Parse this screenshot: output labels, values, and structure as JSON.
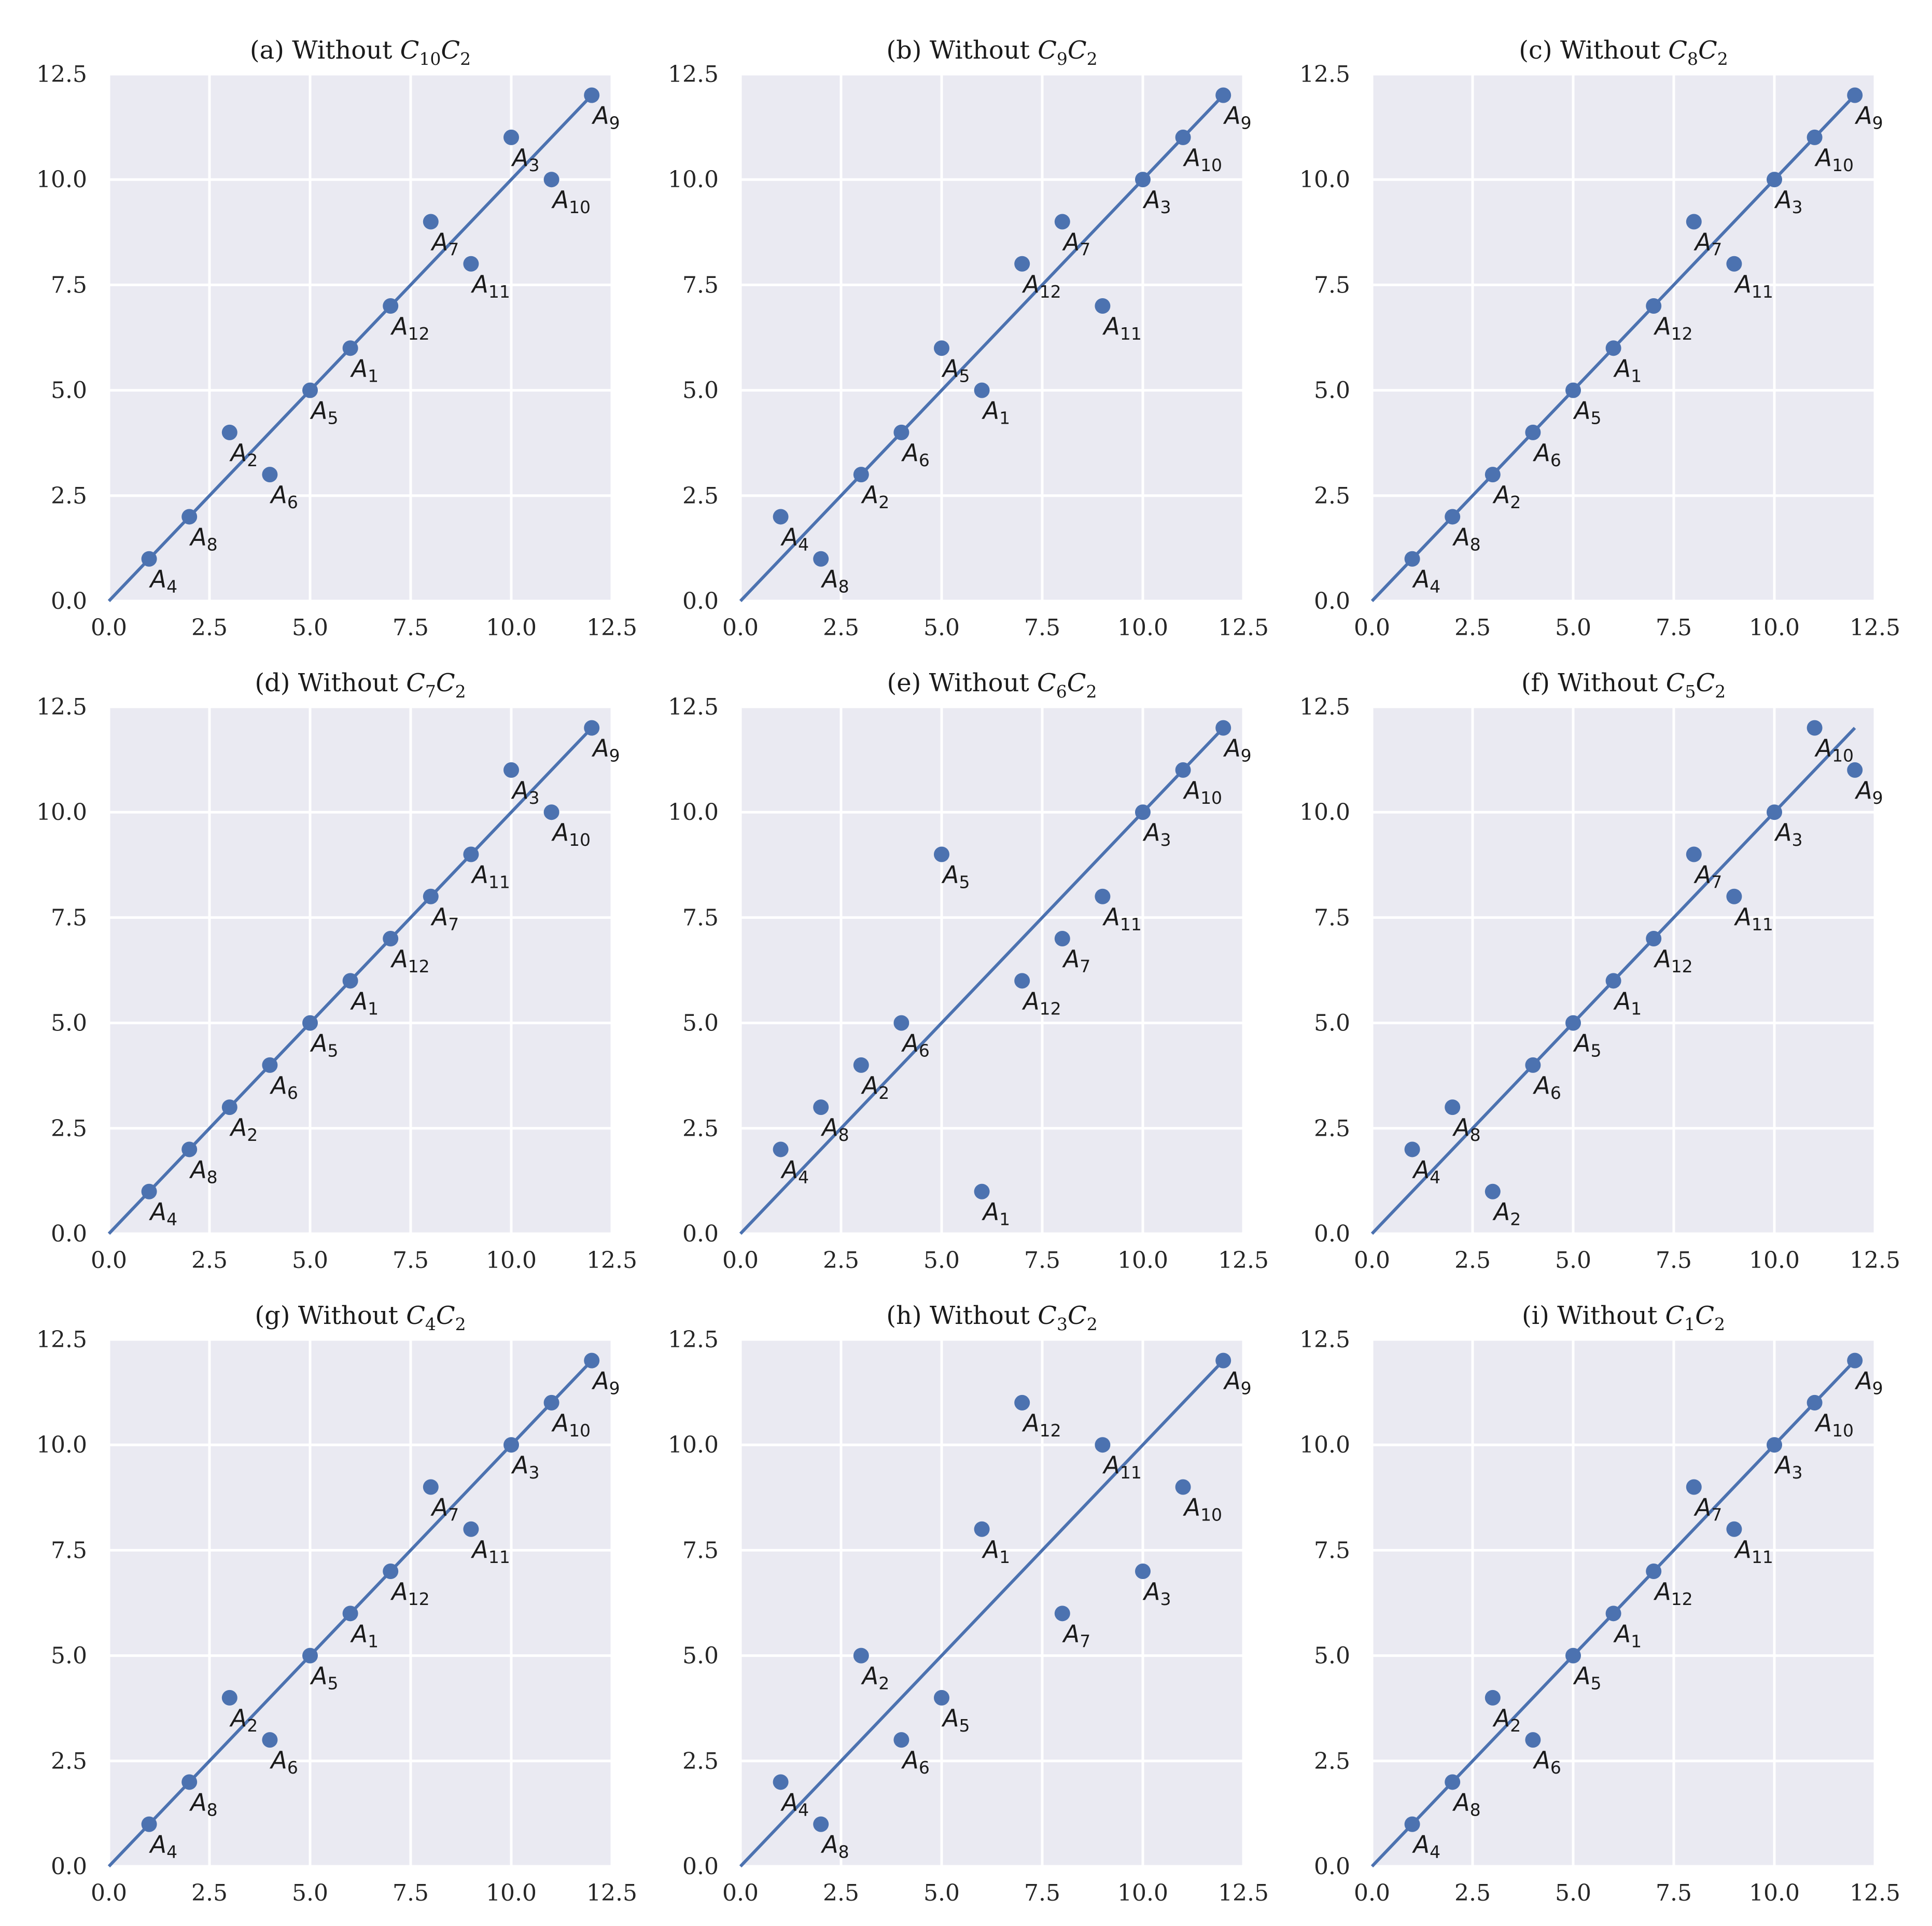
{
  "style": {
    "point_color": "#4c72b0",
    "line_color": "#4c72b0",
    "panel_bg": "#eaeaf2",
    "grid_color": "#ffffff"
  },
  "chart_data": [
    {
      "type": "scatter",
      "label": "(a) Without ",
      "sym": "C",
      "sub1": "10",
      "sym2": "C",
      "sub2": "2",
      "xlim": [
        0,
        12.5
      ],
      "ylim": [
        0,
        12.5
      ],
      "xticks": [
        "0.0",
        "2.5",
        "5.0",
        "7.5",
        "10.0",
        "12.5"
      ],
      "yticks": [
        "0.0",
        "2.5",
        "5.0",
        "7.5",
        "10.0",
        "12.5"
      ],
      "line": {
        "x": [
          0,
          12
        ],
        "y": [
          0,
          12
        ]
      },
      "points": [
        {
          "x": 1,
          "y": 1,
          "sub": "4"
        },
        {
          "x": 2,
          "y": 2,
          "sub": "8"
        },
        {
          "x": 3,
          "y": 4,
          "sub": "2"
        },
        {
          "x": 4,
          "y": 3,
          "sub": "6"
        },
        {
          "x": 5,
          "y": 5,
          "sub": "5"
        },
        {
          "x": 6,
          "y": 6,
          "sub": "1"
        },
        {
          "x": 7,
          "y": 7,
          "sub": "12"
        },
        {
          "x": 8,
          "y": 9,
          "sub": "7"
        },
        {
          "x": 9,
          "y": 8,
          "sub": "11"
        },
        {
          "x": 10,
          "y": 11,
          "sub": "3"
        },
        {
          "x": 11,
          "y": 10,
          "sub": "10"
        },
        {
          "x": 12,
          "y": 12,
          "sub": "9"
        }
      ]
    },
    {
      "type": "scatter",
      "label": "(b) Without ",
      "sym": "C",
      "sub1": "9",
      "sym2": "C",
      "sub2": "2",
      "xlim": [
        0,
        12.5
      ],
      "ylim": [
        0,
        12.5
      ],
      "xticks": [
        "0.0",
        "2.5",
        "5.0",
        "7.5",
        "10.0",
        "12.5"
      ],
      "yticks": [
        "0.0",
        "2.5",
        "5.0",
        "7.5",
        "10.0",
        "12.5"
      ],
      "line": {
        "x": [
          0,
          12
        ],
        "y": [
          0,
          12
        ]
      },
      "points": [
        {
          "x": 1,
          "y": 2,
          "sub": "4"
        },
        {
          "x": 2,
          "y": 1,
          "sub": "8"
        },
        {
          "x": 3,
          "y": 3,
          "sub": "2"
        },
        {
          "x": 4,
          "y": 4,
          "sub": "6"
        },
        {
          "x": 5,
          "y": 6,
          "sub": "5"
        },
        {
          "x": 6,
          "y": 5,
          "sub": "1"
        },
        {
          "x": 7,
          "y": 8,
          "sub": "12"
        },
        {
          "x": 8,
          "y": 9,
          "sub": "7"
        },
        {
          "x": 9,
          "y": 7,
          "sub": "11"
        },
        {
          "x": 10,
          "y": 10,
          "sub": "3"
        },
        {
          "x": 11,
          "y": 11,
          "sub": "10"
        },
        {
          "x": 12,
          "y": 12,
          "sub": "9"
        }
      ]
    },
    {
      "type": "scatter",
      "label": "(c) Without ",
      "sym": "C",
      "sub1": "8",
      "sym2": "C",
      "sub2": "2",
      "xlim": [
        0,
        12.5
      ],
      "ylim": [
        0,
        12.5
      ],
      "xticks": [
        "0.0",
        "2.5",
        "5.0",
        "7.5",
        "10.0",
        "12.5"
      ],
      "yticks": [
        "0.0",
        "2.5",
        "5.0",
        "7.5",
        "10.0",
        "12.5"
      ],
      "line": {
        "x": [
          0,
          12
        ],
        "y": [
          0,
          12
        ]
      },
      "points": [
        {
          "x": 1,
          "y": 1,
          "sub": "4"
        },
        {
          "x": 2,
          "y": 2,
          "sub": "8"
        },
        {
          "x": 3,
          "y": 3,
          "sub": "2"
        },
        {
          "x": 4,
          "y": 4,
          "sub": "6"
        },
        {
          "x": 5,
          "y": 5,
          "sub": "5"
        },
        {
          "x": 6,
          "y": 6,
          "sub": "1"
        },
        {
          "x": 7,
          "y": 7,
          "sub": "12"
        },
        {
          "x": 8,
          "y": 9,
          "sub": "7"
        },
        {
          "x": 9,
          "y": 8,
          "sub": "11"
        },
        {
          "x": 10,
          "y": 10,
          "sub": "3"
        },
        {
          "x": 11,
          "y": 11,
          "sub": "10"
        },
        {
          "x": 12,
          "y": 12,
          "sub": "9"
        }
      ]
    },
    {
      "type": "scatter",
      "label": "(d) Without ",
      "sym": "C",
      "sub1": "7",
      "sym2": "C",
      "sub2": "2",
      "xlim": [
        0,
        12.5
      ],
      "ylim": [
        0,
        12.5
      ],
      "xticks": [
        "0.0",
        "2.5",
        "5.0",
        "7.5",
        "10.0",
        "12.5"
      ],
      "yticks": [
        "0.0",
        "2.5",
        "5.0",
        "7.5",
        "10.0",
        "12.5"
      ],
      "line": {
        "x": [
          0,
          12
        ],
        "y": [
          0,
          12
        ]
      },
      "points": [
        {
          "x": 1,
          "y": 1,
          "sub": "4"
        },
        {
          "x": 2,
          "y": 2,
          "sub": "8"
        },
        {
          "x": 3,
          "y": 3,
          "sub": "2"
        },
        {
          "x": 4,
          "y": 4,
          "sub": "6"
        },
        {
          "x": 5,
          "y": 5,
          "sub": "5"
        },
        {
          "x": 6,
          "y": 6,
          "sub": "1"
        },
        {
          "x": 7,
          "y": 7,
          "sub": "12"
        },
        {
          "x": 8,
          "y": 8,
          "sub": "7"
        },
        {
          "x": 9,
          "y": 9,
          "sub": "11"
        },
        {
          "x": 10,
          "y": 11,
          "sub": "3"
        },
        {
          "x": 11,
          "y": 10,
          "sub": "10"
        },
        {
          "x": 12,
          "y": 12,
          "sub": "9"
        }
      ]
    },
    {
      "type": "scatter",
      "label": "(e) Without ",
      "sym": "C",
      "sub1": "6",
      "sym2": "C",
      "sub2": "2",
      "xlim": [
        0,
        12.5
      ],
      "ylim": [
        0,
        12.5
      ],
      "xticks": [
        "0.0",
        "2.5",
        "5.0",
        "7.5",
        "10.0",
        "12.5"
      ],
      "yticks": [
        "0.0",
        "2.5",
        "5.0",
        "7.5",
        "10.0",
        "12.5"
      ],
      "line": {
        "x": [
          0,
          12
        ],
        "y": [
          0,
          12
        ]
      },
      "points": [
        {
          "x": 1,
          "y": 2,
          "sub": "4"
        },
        {
          "x": 2,
          "y": 3,
          "sub": "8"
        },
        {
          "x": 3,
          "y": 4,
          "sub": "2"
        },
        {
          "x": 4,
          "y": 5,
          "sub": "6"
        },
        {
          "x": 5,
          "y": 9,
          "sub": "5"
        },
        {
          "x": 6,
          "y": 1,
          "sub": "1"
        },
        {
          "x": 7,
          "y": 6,
          "sub": "12"
        },
        {
          "x": 8,
          "y": 7,
          "sub": "7"
        },
        {
          "x": 9,
          "y": 8,
          "sub": "11"
        },
        {
          "x": 10,
          "y": 10,
          "sub": "3"
        },
        {
          "x": 11,
          "y": 11,
          "sub": "10"
        },
        {
          "x": 12,
          "y": 12,
          "sub": "9"
        }
      ]
    },
    {
      "type": "scatter",
      "label": "(f) Without ",
      "sym": "C",
      "sub1": "5",
      "sym2": "C",
      "sub2": "2",
      "xlim": [
        0,
        12.5
      ],
      "ylim": [
        0,
        12.5
      ],
      "xticks": [
        "0.0",
        "2.5",
        "5.0",
        "7.5",
        "10.0",
        "12.5"
      ],
      "yticks": [
        "0.0",
        "2.5",
        "5.0",
        "7.5",
        "10.0",
        "12.5"
      ],
      "line": {
        "x": [
          0,
          12
        ],
        "y": [
          0,
          12
        ]
      },
      "points": [
        {
          "x": 1,
          "y": 2,
          "sub": "4"
        },
        {
          "x": 2,
          "y": 3,
          "sub": "8"
        },
        {
          "x": 3,
          "y": 1,
          "sub": "2"
        },
        {
          "x": 4,
          "y": 4,
          "sub": "6"
        },
        {
          "x": 5,
          "y": 5,
          "sub": "5"
        },
        {
          "x": 6,
          "y": 6,
          "sub": "1"
        },
        {
          "x": 7,
          "y": 7,
          "sub": "12"
        },
        {
          "x": 8,
          "y": 9,
          "sub": "7"
        },
        {
          "x": 9,
          "y": 8,
          "sub": "11"
        },
        {
          "x": 10,
          "y": 10,
          "sub": "3"
        },
        {
          "x": 11,
          "y": 12,
          "sub": "10"
        },
        {
          "x": 12,
          "y": 11,
          "sub": "9"
        }
      ]
    },
    {
      "type": "scatter",
      "label": "(g) Without ",
      "sym": "C",
      "sub1": "4",
      "sym2": "C",
      "sub2": "2",
      "xlim": [
        0,
        12.5
      ],
      "ylim": [
        0,
        12.5
      ],
      "xticks": [
        "0.0",
        "2.5",
        "5.0",
        "7.5",
        "10.0",
        "12.5"
      ],
      "yticks": [
        "0.0",
        "2.5",
        "5.0",
        "7.5",
        "10.0",
        "12.5"
      ],
      "line": {
        "x": [
          0,
          12
        ],
        "y": [
          0,
          12
        ]
      },
      "points": [
        {
          "x": 1,
          "y": 1,
          "sub": "4"
        },
        {
          "x": 2,
          "y": 2,
          "sub": "8"
        },
        {
          "x": 3,
          "y": 4,
          "sub": "2"
        },
        {
          "x": 4,
          "y": 3,
          "sub": "6"
        },
        {
          "x": 5,
          "y": 5,
          "sub": "5"
        },
        {
          "x": 6,
          "y": 6,
          "sub": "1"
        },
        {
          "x": 7,
          "y": 7,
          "sub": "12"
        },
        {
          "x": 8,
          "y": 9,
          "sub": "7"
        },
        {
          "x": 9,
          "y": 8,
          "sub": "11"
        },
        {
          "x": 10,
          "y": 10,
          "sub": "3"
        },
        {
          "x": 11,
          "y": 11,
          "sub": "10"
        },
        {
          "x": 12,
          "y": 12,
          "sub": "9"
        }
      ]
    },
    {
      "type": "scatter",
      "label": "(h) Without ",
      "sym": "C",
      "sub1": "3",
      "sym2": "C",
      "sub2": "2",
      "xlim": [
        0,
        12.5
      ],
      "ylim": [
        0,
        12.5
      ],
      "xticks": [
        "0.0",
        "2.5",
        "5.0",
        "7.5",
        "10.0",
        "12.5"
      ],
      "yticks": [
        "0.0",
        "2.5",
        "5.0",
        "7.5",
        "10.0",
        "12.5"
      ],
      "line": {
        "x": [
          0,
          12
        ],
        "y": [
          0,
          12
        ]
      },
      "points": [
        {
          "x": 1,
          "y": 2,
          "sub": "4"
        },
        {
          "x": 2,
          "y": 1,
          "sub": "8"
        },
        {
          "x": 3,
          "y": 5,
          "sub": "2"
        },
        {
          "x": 4,
          "y": 3,
          "sub": "6"
        },
        {
          "x": 5,
          "y": 4,
          "sub": "5"
        },
        {
          "x": 6,
          "y": 8,
          "sub": "1"
        },
        {
          "x": 7,
          "y": 11,
          "sub": "12"
        },
        {
          "x": 8,
          "y": 6,
          "sub": "7"
        },
        {
          "x": 9,
          "y": 10,
          "sub": "11"
        },
        {
          "x": 10,
          "y": 7,
          "sub": "3"
        },
        {
          "x": 11,
          "y": 9,
          "sub": "10"
        },
        {
          "x": 12,
          "y": 12,
          "sub": "9"
        }
      ]
    },
    {
      "type": "scatter",
      "label": "(i) Without ",
      "sym": "C",
      "sub1": "1",
      "sym2": "C",
      "sub2": "2",
      "xlim": [
        0,
        12.5
      ],
      "ylim": [
        0,
        12.5
      ],
      "xticks": [
        "0.0",
        "2.5",
        "5.0",
        "7.5",
        "10.0",
        "12.5"
      ],
      "yticks": [
        "0.0",
        "2.5",
        "5.0",
        "7.5",
        "10.0",
        "12.5"
      ],
      "line": {
        "x": [
          0,
          12
        ],
        "y": [
          0,
          12
        ]
      },
      "points": [
        {
          "x": 1,
          "y": 1,
          "sub": "4"
        },
        {
          "x": 2,
          "y": 2,
          "sub": "8"
        },
        {
          "x": 3,
          "y": 4,
          "sub": "2"
        },
        {
          "x": 4,
          "y": 3,
          "sub": "6"
        },
        {
          "x": 5,
          "y": 5,
          "sub": "5"
        },
        {
          "x": 6,
          "y": 6,
          "sub": "1"
        },
        {
          "x": 7,
          "y": 7,
          "sub": "12"
        },
        {
          "x": 8,
          "y": 9,
          "sub": "7"
        },
        {
          "x": 9,
          "y": 8,
          "sub": "11"
        },
        {
          "x": 10,
          "y": 10,
          "sub": "3"
        },
        {
          "x": 11,
          "y": 11,
          "sub": "10"
        },
        {
          "x": 12,
          "y": 12,
          "sub": "9"
        }
      ]
    }
  ]
}
